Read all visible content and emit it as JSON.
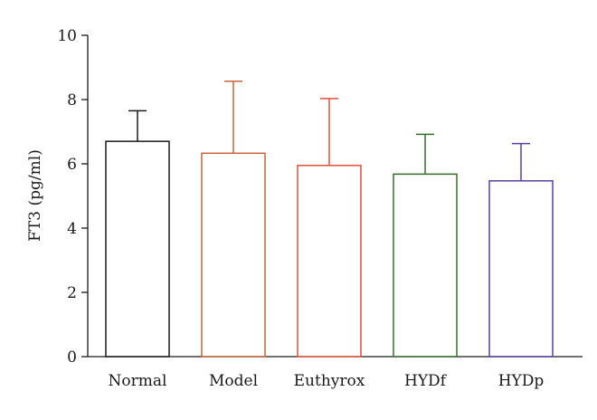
{
  "chart_data": {
    "type": "bar",
    "categories": [
      "Normal",
      "Model",
      "Euthyrox",
      "HYDf",
      "HYDp"
    ],
    "values": [
      6.7,
      6.33,
      5.95,
      5.68,
      5.47
    ],
    "error_upper": [
      7.65,
      8.57,
      8.03,
      6.92,
      6.63
    ],
    "colors": [
      "#1a1a1a",
      "#c8643c",
      "#e0503a",
      "#3a6b2e",
      "#5a3fa0"
    ],
    "title": "",
    "xlabel": "",
    "ylabel": "FT3 (pg/ml)",
    "ylim": [
      0,
      10
    ],
    "yticks": [
      "0",
      "2",
      "4",
      "6",
      "8",
      "10"
    ],
    "grid": false,
    "bar_fill": "none"
  }
}
